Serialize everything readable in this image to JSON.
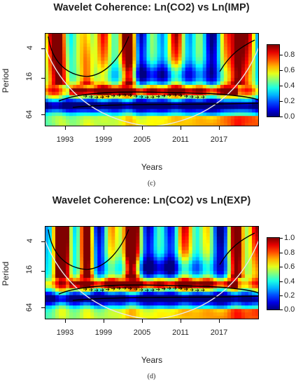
{
  "chart_data": [
    {
      "type": "heatmap",
      "title": "Wavelet Coherence: Ln(CO2) vs Ln(IMP)",
      "xlabel": "Years",
      "ylabel": "Period",
      "caption": "(c)",
      "x_ticks": [
        "1993",
        "1999",
        "2005",
        "2011",
        "2017"
      ],
      "x_tick_values": [
        1993,
        1999,
        2005,
        2011,
        2017
      ],
      "xlim": [
        1988,
        2019
      ],
      "y_ticks": [
        "4",
        "16",
        "64"
      ],
      "y_tick_values": [
        4,
        16,
        64
      ],
      "ylim": [
        2,
        100
      ],
      "y_scale": "log2",
      "colorbar_ticks": [
        "0.0",
        "0.2",
        "0.4",
        "0.6",
        "0.8"
      ],
      "colorbar_tick_values": [
        0,
        0.2,
        0.4,
        0.6,
        0.8
      ],
      "colorbar_range": [
        0,
        0.95
      ],
      "colormap": [
        "#00007f",
        "#0000ff",
        "#007fff",
        "#00ffff",
        "#7fff7f",
        "#ffff00",
        "#ff7f00",
        "#ff0000",
        "#7f0000"
      ]
    },
    {
      "type": "heatmap",
      "title": "Wavelet Coherence: Ln(CO2) vs Ln(EXP)",
      "xlabel": "Years",
      "ylabel": "Period",
      "caption": "(d)",
      "x_ticks": [
        "1993",
        "1999",
        "2005",
        "2011",
        "2017"
      ],
      "x_tick_values": [
        1993,
        1999,
        2005,
        2011,
        2017
      ],
      "xlim": [
        1988,
        2019
      ],
      "y_ticks": [
        "4",
        "16",
        "64"
      ],
      "y_tick_values": [
        4,
        16,
        64
      ],
      "ylim": [
        2,
        100
      ],
      "y_scale": "log2",
      "colorbar_ticks": [
        "0.0",
        "0.2",
        "0.4",
        "0.6",
        "0.8",
        "1.0"
      ],
      "colorbar_tick_values": [
        0,
        0.2,
        0.4,
        0.6,
        0.8,
        1.0
      ],
      "colorbar_range": [
        0,
        1.0
      ],
      "colormap": [
        "#00007f",
        "#0000ff",
        "#007fff",
        "#00ffff",
        "#7fff7f",
        "#ffff00",
        "#ff7f00",
        "#ff0000",
        "#7f0000"
      ]
    }
  ]
}
